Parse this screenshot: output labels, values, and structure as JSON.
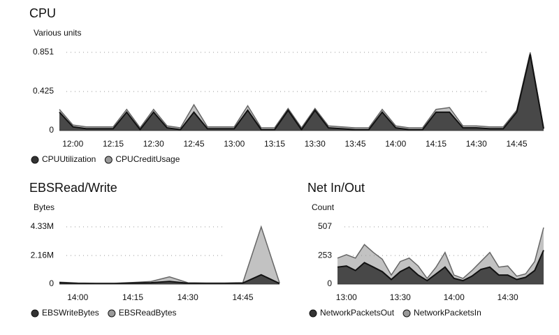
{
  "chart_data": [
    {
      "type": "area",
      "title": "CPU",
      "y_label": "Various units",
      "categories": [
        null,
        "12:00",
        null,
        null,
        "12:15",
        null,
        null,
        "12:30",
        null,
        null,
        "12:45",
        null,
        null,
        "13:00",
        null,
        null,
        "13:15",
        null,
        null,
        "13:30",
        null,
        null,
        "13:45",
        null,
        null,
        "14:00",
        null,
        null,
        "14:15",
        null,
        null,
        "14:30",
        null,
        null,
        "14:45",
        null,
        null
      ],
      "series": [
        {
          "name": "CPUUtilization",
          "color": "#333333",
          "values": [
            0.2,
            0.04,
            0.02,
            0.02,
            0.02,
            0.2,
            0.01,
            0.2,
            0.03,
            0.01,
            0.2,
            0.02,
            0.02,
            0.02,
            0.22,
            0.01,
            0.01,
            0.22,
            0.01,
            0.22,
            0.03,
            0.02,
            0.01,
            0.01,
            0.2,
            0.03,
            0.01,
            0.01,
            0.2,
            0.2,
            0.03,
            0.03,
            0.02,
            0.02,
            0.2,
            0.83,
            0.02
          ]
        },
        {
          "name": "CPUCreditUsage",
          "color": "#9a9a9a",
          "values": [
            0.23,
            0.06,
            0.04,
            0.04,
            0.04,
            0.23,
            0.03,
            0.23,
            0.05,
            0.03,
            0.28,
            0.04,
            0.04,
            0.04,
            0.27,
            0.03,
            0.03,
            0.24,
            0.03,
            0.24,
            0.05,
            0.04,
            0.03,
            0.03,
            0.23,
            0.05,
            0.03,
            0.03,
            0.23,
            0.25,
            0.05,
            0.05,
            0.04,
            0.04,
            0.22,
            0.85,
            0.03
          ]
        }
      ],
      "ylim": [
        0,
        0.851
      ],
      "yticks": [
        0,
        0.425,
        0.851
      ],
      "grid": true
    },
    {
      "type": "area",
      "title": "EBSRead/Write",
      "y_label": "Bytes",
      "categories": [
        null,
        "14:00",
        null,
        null,
        "14:15",
        null,
        null,
        "14:30",
        null,
        null,
        "14:45",
        null,
        null
      ],
      "series": [
        {
          "name": "EBSWriteBytes",
          "color": "#333333",
          "values": [
            100000,
            50000,
            40000,
            40000,
            80000,
            100000,
            200000,
            60000,
            50000,
            50000,
            80000,
            700000,
            50000
          ]
        },
        {
          "name": "EBSReadBytes",
          "color": "#9a9a9a",
          "values": [
            150000,
            80000,
            60000,
            60000,
            120000,
            200000,
            550000,
            100000,
            80000,
            80000,
            100000,
            4330000,
            100000
          ]
        }
      ],
      "ylim": [
        0,
        4330000
      ],
      "yticks": [
        0,
        {
          "value": 2160000,
          "label": "2.16M"
        },
        {
          "value": 4330000,
          "label": "4.33M"
        }
      ],
      "grid": true
    },
    {
      "type": "area",
      "title": "Net In/Out",
      "y_label": "Count",
      "categories": [
        null,
        "13:00",
        null,
        null,
        null,
        null,
        null,
        "13:30",
        null,
        null,
        null,
        null,
        null,
        "14:00",
        null,
        null,
        null,
        null,
        null,
        "14:30",
        null,
        null,
        null,
        null
      ],
      "series": [
        {
          "name": "NetworkPacketsOut",
          "color": "#333333",
          "values": [
            150,
            160,
            120,
            190,
            150,
            110,
            40,
            110,
            150,
            80,
            30,
            90,
            150,
            50,
            30,
            70,
            130,
            150,
            80,
            80,
            40,
            60,
            120,
            300
          ]
        },
        {
          "name": "NetworkPacketsIn",
          "color": "#9a9a9a",
          "values": [
            230,
            260,
            230,
            350,
            280,
            220,
            80,
            200,
            230,
            160,
            50,
            150,
            280,
            80,
            50,
            120,
            200,
            280,
            150,
            160,
            70,
            90,
            200,
            500
          ]
        }
      ],
      "ylim": [
        0,
        507
      ],
      "yticks": [
        0,
        253,
        507
      ],
      "grid": true
    }
  ]
}
